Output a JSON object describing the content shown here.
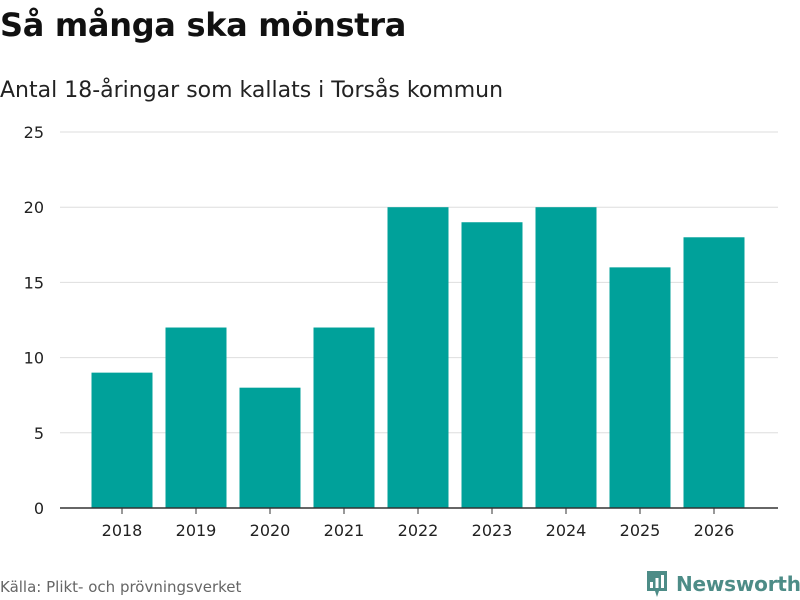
{
  "header": {
    "title": "Så många ska mönstra",
    "subtitle": "Antal 18-åringar som kallats i Torsås kommun"
  },
  "chart_data": {
    "type": "bar",
    "title": "Så många ska mönstra",
    "subtitle": "Antal 18-åringar som kallats i Torsås kommun",
    "xlabel": "",
    "ylabel": "",
    "categories": [
      "2018",
      "2019",
      "2020",
      "2021",
      "2022",
      "2023",
      "2024",
      "2025",
      "2026"
    ],
    "values": [
      9,
      12,
      8,
      12,
      20,
      19,
      20,
      16,
      18
    ],
    "ylim": [
      0,
      25
    ],
    "yticks": [
      0,
      5,
      10,
      15,
      20,
      25
    ],
    "grid": true,
    "bar_color": "#00a19a"
  },
  "footer": {
    "source": "Källa: Plikt- och prövningsverket",
    "brand": "Newsworthy",
    "brand_color": "#4d8c87",
    "brand_icon": "newsworthy-logo-icon"
  }
}
